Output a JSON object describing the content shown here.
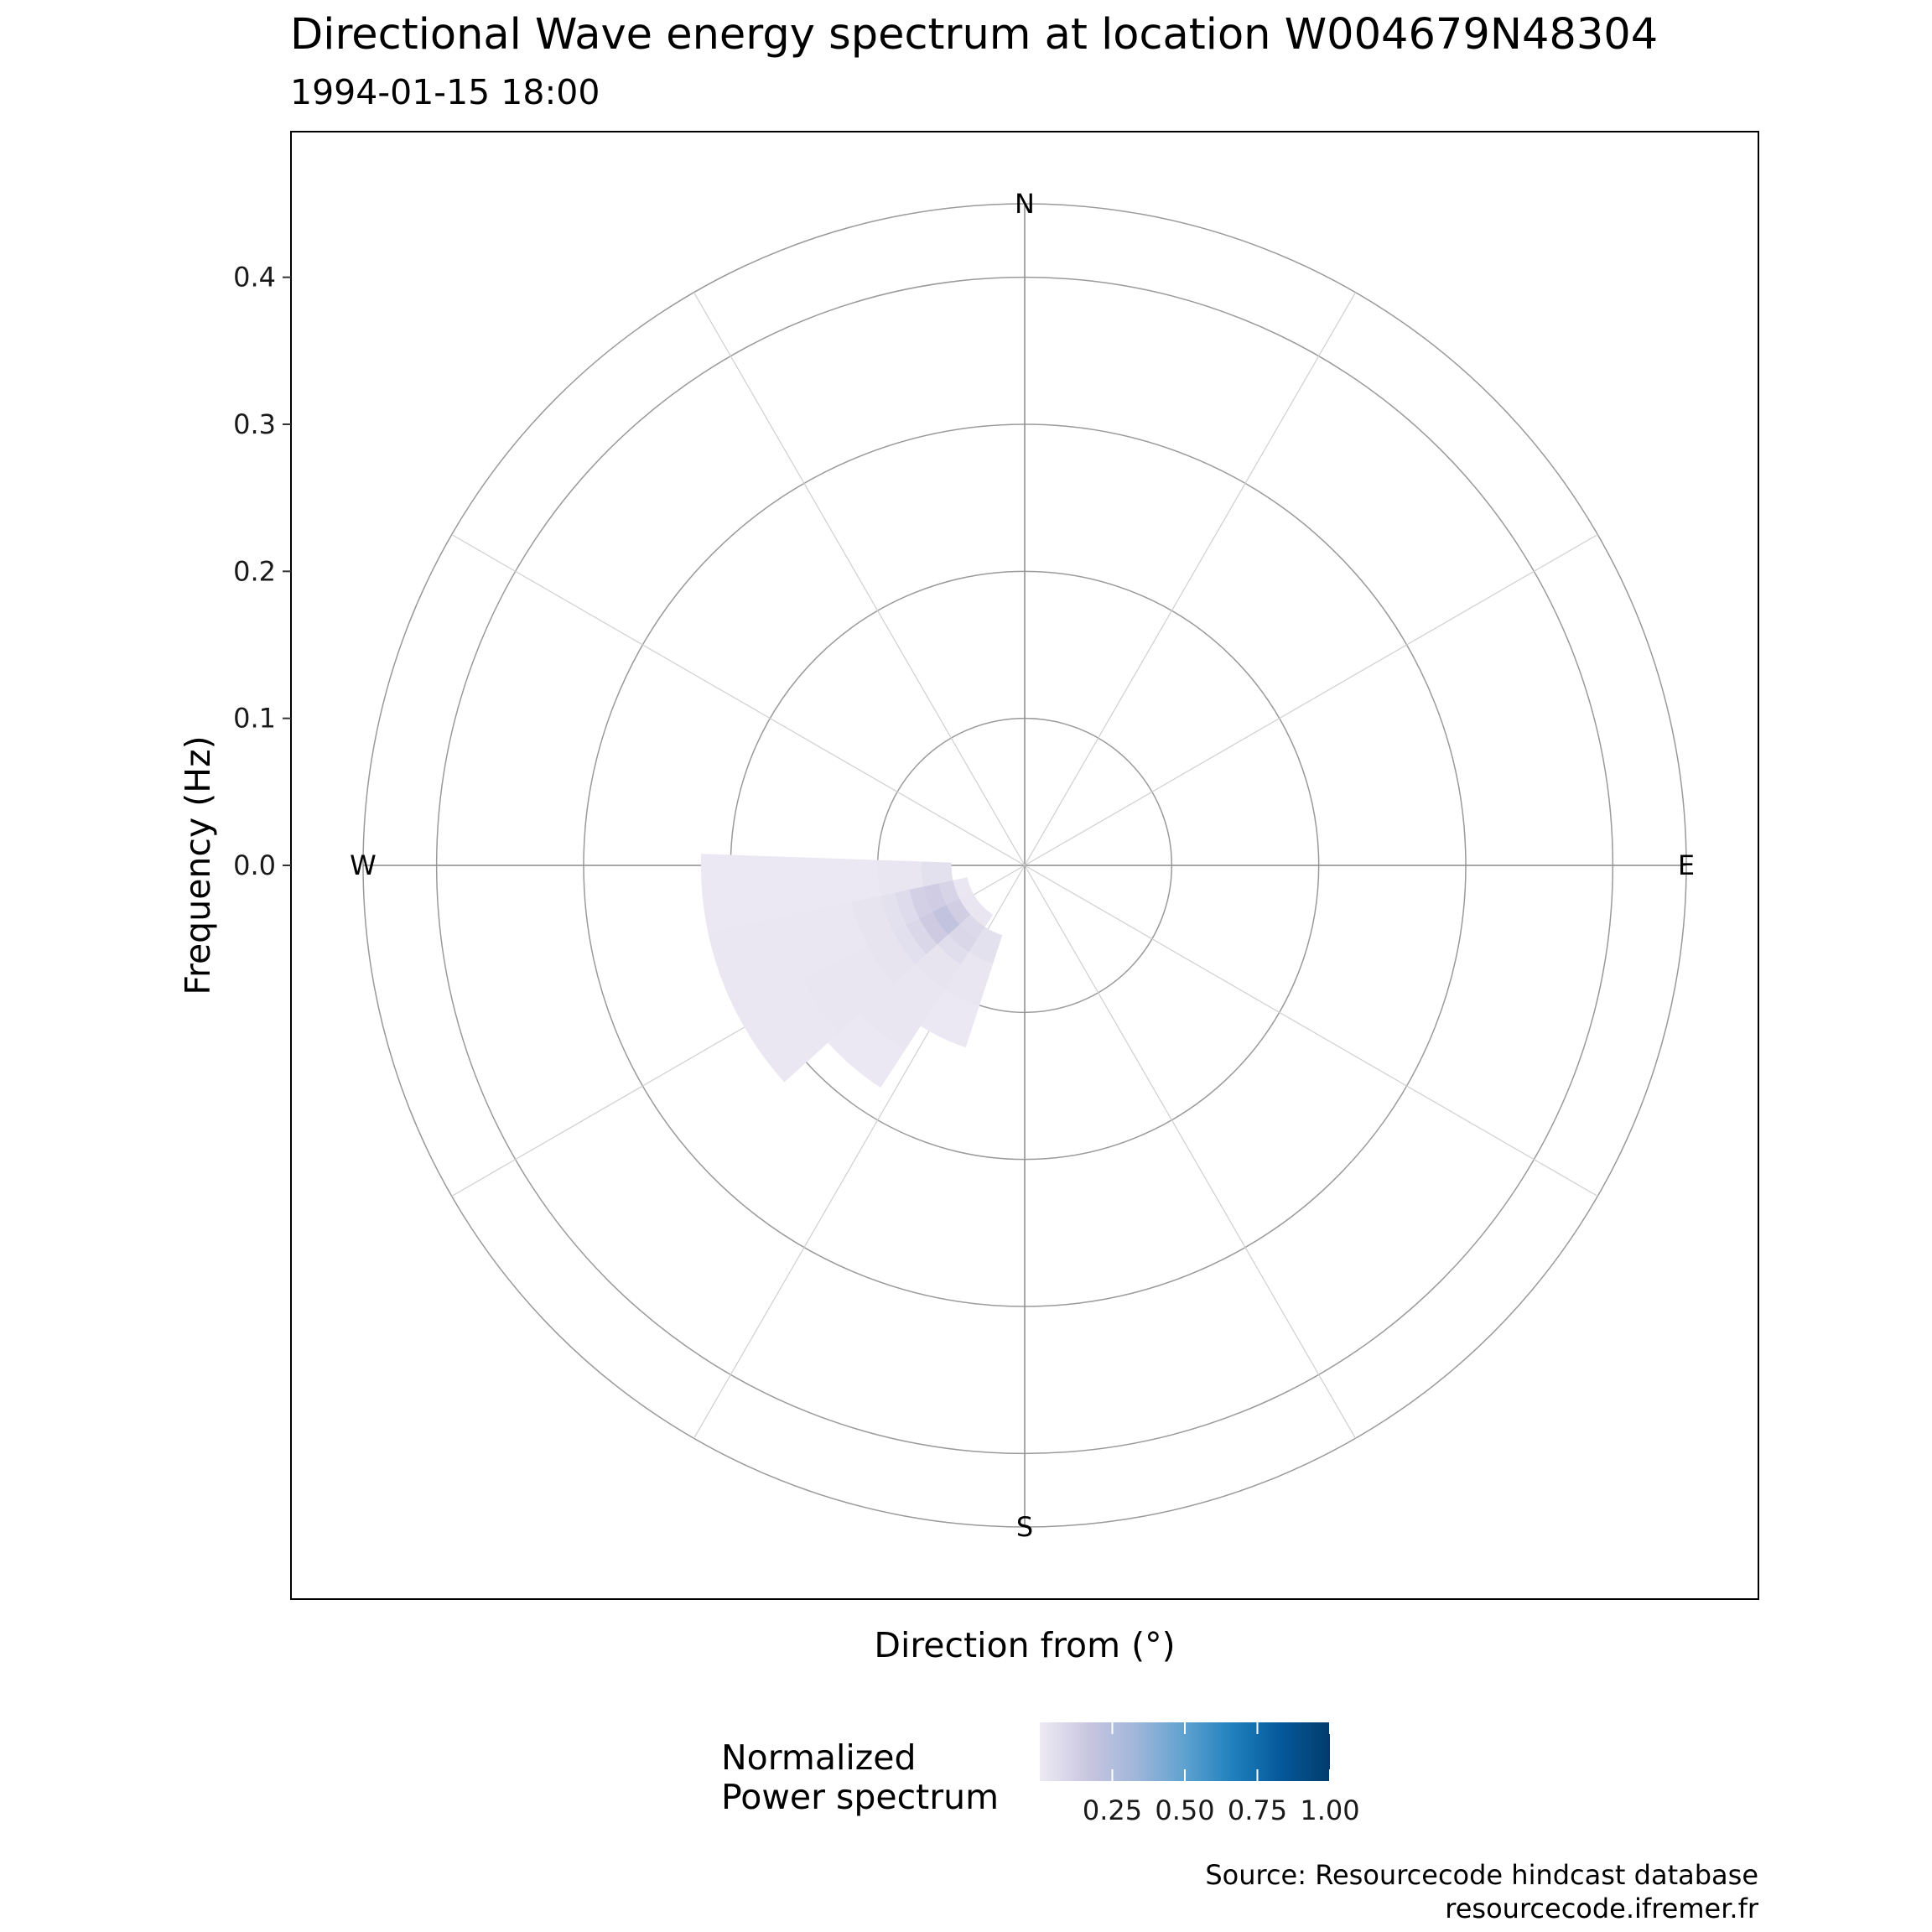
{
  "chart_data": {
    "type": "heatmap",
    "projection": "polar",
    "title": "Directional Wave energy spectrum at location W004679N48304",
    "subtitle": "1994-01-15 18:00",
    "xlabel": "Direction from (°)",
    "ylabel": "Frequency (Hz)",
    "y_ticks": [
      "0.0",
      "0.1",
      "0.2",
      "0.3",
      "0.4"
    ],
    "y_tick_values": [
      0.0,
      0.1,
      0.2,
      0.3,
      0.4
    ],
    "compass_labels": [
      "N",
      "E",
      "S",
      "W"
    ],
    "radial_range": [
      0,
      0.45
    ],
    "ring_values": [
      0.1,
      0.2,
      0.3,
      0.4,
      0.45
    ],
    "spoke_directions_deg": [
      0,
      30,
      60,
      90,
      120,
      150,
      180,
      210,
      240,
      270,
      300,
      330
    ],
    "legend": {
      "title_lines": [
        "Normalized",
        "Power spectrum"
      ],
      "ticks": [
        "0.25",
        "0.50",
        "0.75",
        "1.00"
      ],
      "tick_values": [
        0.25,
        0.5,
        0.75,
        1.0
      ],
      "range": [
        0.0,
        1.0
      ],
      "colors": [
        "#edeaf4",
        "#c9c6e0",
        "#9fb6da",
        "#5ea2cf",
        "#1f80bd",
        "#05589a",
        "#023c6b"
      ],
      "position": "bottom"
    },
    "caption_lines": [
      "Source: Resourcecode hindcast database",
      "resourcecode.ifremer.fr"
    ],
    "cells": [
      {
        "d0": 243,
        "d1": 258,
        "f0": 0.05,
        "f1": 0.06,
        "v": 0.1
      },
      {
        "d0": 243,
        "d1": 258,
        "f0": 0.06,
        "f1": 0.07,
        "v": 0.14
      },
      {
        "d0": 243,
        "d1": 258,
        "f0": 0.07,
        "f1": 0.08,
        "v": 0.12
      },
      {
        "d0": 243,
        "d1": 258,
        "f0": 0.08,
        "f1": 0.09,
        "v": 0.07
      },
      {
        "d0": 243,
        "d1": 258,
        "f0": 0.09,
        "f1": 0.1,
        "v": 0.04
      },
      {
        "d0": 243,
        "d1": 258,
        "f0": 0.1,
        "f1": 0.12,
        "v": 0.03
      },
      {
        "d0": 228,
        "d1": 243,
        "f0": 0.05,
        "f1": 0.06,
        "v": 0.13
      },
      {
        "d0": 228,
        "d1": 243,
        "f0": 0.06,
        "f1": 0.07,
        "v": 0.2
      },
      {
        "d0": 228,
        "d1": 243,
        "f0": 0.07,
        "f1": 0.08,
        "v": 0.15
      },
      {
        "d0": 228,
        "d1": 243,
        "f0": 0.08,
        "f1": 0.09,
        "v": 0.09
      },
      {
        "d0": 228,
        "d1": 243,
        "f0": 0.09,
        "f1": 0.1,
        "v": 0.05
      },
      {
        "d0": 228,
        "d1": 243,
        "f0": 0.1,
        "f1": 0.12,
        "v": 0.03
      },
      {
        "d0": 228,
        "d1": 243,
        "f0": 0.12,
        "f1": 0.17,
        "v": 0.02
      },
      {
        "d0": 213,
        "d1": 228,
        "f0": 0.05,
        "f1": 0.06,
        "v": 0.08
      },
      {
        "d0": 213,
        "d1": 228,
        "f0": 0.06,
        "f1": 0.07,
        "v": 0.09
      },
      {
        "d0": 213,
        "d1": 228,
        "f0": 0.07,
        "f1": 0.08,
        "v": 0.06
      },
      {
        "d0": 213,
        "d1": 228,
        "f0": 0.08,
        "f1": 0.1,
        "v": 0.03
      },
      {
        "d0": 213,
        "d1": 228,
        "f0": 0.1,
        "f1": 0.15,
        "v": 0.02
      },
      {
        "d0": 198,
        "d1": 213,
        "f0": 0.05,
        "f1": 0.07,
        "v": 0.04
      },
      {
        "d0": 198,
        "d1": 213,
        "f0": 0.07,
        "f1": 0.1,
        "v": 0.02
      },
      {
        "d0": 198,
        "d1": 213,
        "f0": 0.1,
        "f1": 0.13,
        "v": 0.01
      },
      {
        "d0": 258,
        "d1": 272,
        "f0": 0.05,
        "f1": 0.07,
        "v": 0.04
      },
      {
        "d0": 258,
        "d1": 272,
        "f0": 0.07,
        "f1": 0.1,
        "v": 0.02
      },
      {
        "d0": 258,
        "d1": 272,
        "f0": 0.1,
        "f1": 0.12,
        "v": 0.01
      },
      {
        "d0": 228,
        "d1": 258,
        "f0": 0.12,
        "f1": 0.22,
        "v": 0.015
      },
      {
        "d0": 213,
        "d1": 228,
        "f0": 0.15,
        "f1": 0.18,
        "v": 0.01
      },
      {
        "d0": 258,
        "d1": 272,
        "f0": 0.12,
        "f1": 0.22,
        "v": 0.01
      },
      {
        "d0": 243,
        "d1": 258,
        "f0": 0.12,
        "f1": 0.22,
        "v": 0.015
      },
      {
        "d0": 213,
        "d1": 243,
        "f0": 0.04,
        "f1": 0.05,
        "v": 0.02
      },
      {
        "d0": 243,
        "d1": 258,
        "f0": 0.04,
        "f1": 0.05,
        "v": 0.015
      }
    ]
  }
}
